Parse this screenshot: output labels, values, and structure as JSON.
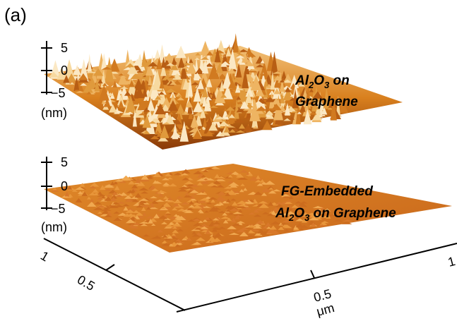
{
  "panel_label": "(a)",
  "top_surface": {
    "z_ticks": [
      "5",
      "0",
      "−5"
    ],
    "z_unit": "(nm)",
    "label_line1": [
      "Al",
      "2",
      "O",
      "3",
      " on"
    ],
    "label_line2": "Graphene"
  },
  "bottom_surface": {
    "z_ticks": [
      "5",
      "0",
      "−5"
    ],
    "z_unit": "(nm)",
    "label_line1": "FG-Embedded",
    "label_line2": [
      "Al",
      "2",
      "O",
      "3",
      " on Graphene"
    ]
  },
  "left_axis": {
    "ticks": [
      "1",
      "0.5"
    ]
  },
  "right_axis": {
    "ticks": [
      "0.5",
      "1"
    ],
    "unit": "μm"
  }
}
